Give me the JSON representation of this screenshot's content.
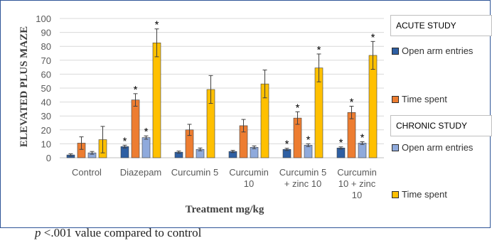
{
  "chart_data": {
    "type": "bar",
    "ylabel": "ELEVATED PLUS MAZE",
    "xlabel": "Treatment mg/kg",
    "ylim": [
      0,
      100
    ],
    "yticks": [
      0,
      10,
      20,
      30,
      40,
      50,
      60,
      70,
      80,
      90,
      100
    ],
    "grid": true,
    "categories": [
      "Control",
      "Diazepam",
      "Curcumin 5",
      "Curcumin 10",
      "Curcumin 5 + zinc 10",
      "Curcumin 10 + zinc 10"
    ],
    "category_lines": [
      [
        "Control"
      ],
      [
        "Diazepam"
      ],
      [
        "Curcumin 5"
      ],
      [
        "Curcumin",
        "10"
      ],
      [
        "Curcumin 5",
        "+ zinc 10"
      ],
      [
        "Curcumin",
        "10 + zinc",
        "10"
      ]
    ],
    "series": [
      {
        "name": "Open arm entries",
        "study": "ACUTE STUDY",
        "color": "#2e5fa3",
        "values": [
          2,
          8,
          4,
          4.5,
          6,
          7
        ],
        "errors": [
          0.8,
          1,
          0.8,
          0.8,
          0.8,
          0.8
        ],
        "significant": [
          false,
          true,
          false,
          false,
          true,
          true
        ]
      },
      {
        "name": "Time spent",
        "study": "ACUTE STUDY",
        "color": "#ed7d31",
        "values": [
          10.5,
          41.5,
          20,
          23,
          28.5,
          32.5
        ],
        "errors": [
          4.5,
          4.5,
          4,
          4.5,
          4.5,
          4.5
        ],
        "significant": [
          false,
          true,
          false,
          false,
          true,
          true
        ]
      },
      {
        "name": "Open arm entries",
        "study": "CHRONIC STUDY",
        "color": "#8faadc",
        "values": [
          3.5,
          14.5,
          6,
          7.5,
          9,
          10.5
        ],
        "errors": [
          1,
          1.2,
          1,
          1,
          1,
          1
        ],
        "significant": [
          false,
          true,
          false,
          false,
          true,
          true
        ]
      },
      {
        "name": "Time spent",
        "study": "CHRONIC STUDY",
        "color": "#ffc000",
        "values": [
          13,
          82.5,
          49,
          53,
          64.5,
          73.5
        ],
        "errors": [
          9.5,
          10,
          10,
          10,
          10,
          10
        ],
        "significant": [
          false,
          true,
          false,
          false,
          true,
          true
        ]
      }
    ],
    "significance_marker": "*"
  },
  "legend": {
    "acute_title": "ACUTE STUDY",
    "chronic_title": "CHRONIC STUDY",
    "acute_open": "Open arm entries",
    "acute_time": "Time spent",
    "chronic_open": "Open arm entries",
    "chronic_time": "Time spent"
  },
  "footnote": {
    "symbol": "p",
    "text": " <.001 value compared to control"
  }
}
